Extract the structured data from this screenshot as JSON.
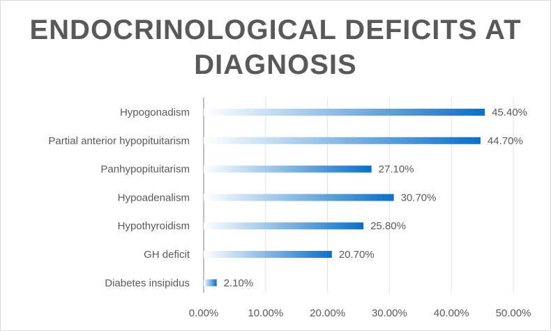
{
  "chart_data": {
    "type": "bar",
    "orientation": "horizontal",
    "title": "ENDOCRINOLOGICAL DEFICITS AT DIAGNOSIS",
    "title_lines": [
      "ENDOCRINOLOGICAL DEFICITS AT",
      "DIAGNOSIS"
    ],
    "categories": [
      "Hypogonadism",
      "Partial anterior hypopituitarism",
      "Panhypopituitarism",
      "Hypoadenalism",
      "Hypothyroidism",
      "GH deficit",
      "Diabetes insipidus"
    ],
    "values": [
      45.4,
      44.7,
      27.1,
      30.7,
      25.8,
      20.7,
      2.1
    ],
    "value_labels": [
      "45.40%",
      "44.70%",
      "27.10%",
      "30.70%",
      "25.80%",
      "20.70%",
      "2.10%"
    ],
    "xlim": [
      0,
      50
    ],
    "xticks": [
      0,
      10,
      20,
      30,
      40,
      50
    ],
    "xtick_labels": [
      "0.00%",
      "10.00%",
      "20.00%",
      "30.00%",
      "40.00%",
      "50.00%"
    ],
    "xlabel": "",
    "ylabel": "",
    "grid": true,
    "bar_color": "#0b6fc7",
    "bar_fade_color": "#ffffff"
  }
}
